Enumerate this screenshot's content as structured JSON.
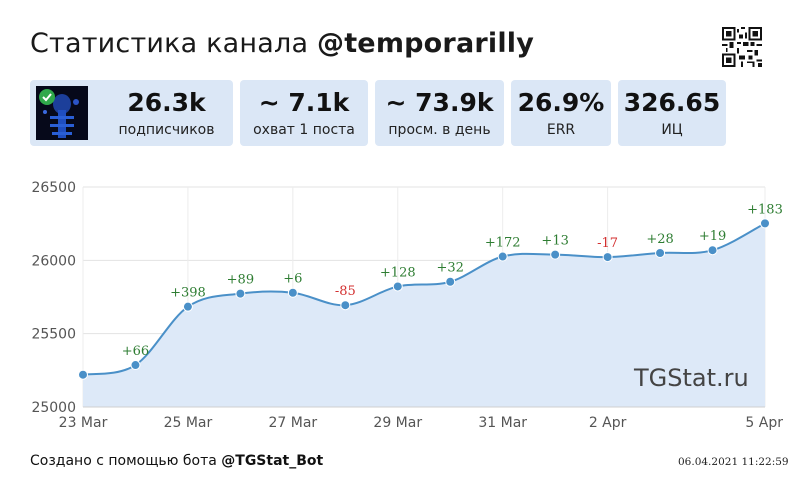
{
  "header": {
    "title_prefix": "Статистика канала ",
    "channel": "@temporarilly"
  },
  "cards": [
    {
      "value": "26.3k",
      "label": "подписчиков"
    },
    {
      "value": "~ 7.1k",
      "label": "охват 1 поста"
    },
    {
      "value": "~ 73.9k",
      "label": "просм. в день"
    },
    {
      "value": "26.9%",
      "label": "ERR"
    },
    {
      "value": "326.65",
      "label": "ИЦ"
    }
  ],
  "chart_data": {
    "type": "area",
    "x": [
      "23 Mar",
      "24 Mar",
      "25 Mar",
      "26 Mar",
      "27 Mar",
      "28 Mar",
      "29 Mar",
      "30 Mar",
      "31 Mar",
      "1 Apr",
      "2 Apr",
      "3 Apr",
      "4 Apr",
      "5 Apr"
    ],
    "values": [
      25220,
      25286,
      25684,
      25773,
      25779,
      25694,
      25822,
      25854,
      26026,
      26039,
      26022,
      26050,
      26069,
      26252
    ],
    "data_labels": [
      "",
      "+66",
      "+398",
      "+89",
      "+6",
      "-85",
      "+128",
      "+32",
      "+172",
      "+13",
      "-17",
      "+28",
      "+19",
      "+183"
    ],
    "xtick_labels": [
      "23 Mar",
      "25 Mar",
      "27 Mar",
      "29 Mar",
      "31 Mar",
      "2 Apr",
      "5 Apr"
    ],
    "xtick_index": [
      0,
      2,
      4,
      6,
      8,
      10,
      13
    ],
    "yticks": [
      25000,
      25500,
      26000,
      26500
    ],
    "ylim": [
      25000,
      26500
    ],
    "grid": true,
    "line_color": "#4a90c8",
    "fill_color": "#dde9f8",
    "positive_color": "#2e7d32",
    "negative_color": "#d32f2f",
    "watermark": "TGStat.ru"
  },
  "footer": {
    "created_prefix": "Создано с помощью бота ",
    "bot": "@TGStat_Bot",
    "timestamp": "06.04.2021 11:22:59"
  }
}
